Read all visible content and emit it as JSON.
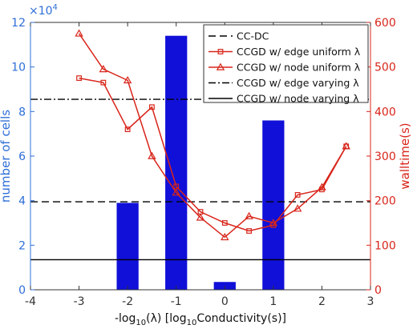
{
  "chart_data": {
    "type": "bar",
    "x_axis": {
      "label_parts": [
        "-log",
        "10",
        "(λ) [log",
        "10",
        "Conductivity(s)]"
      ],
      "range": [
        -4,
        3
      ],
      "ticks": [
        -4,
        -3,
        -2,
        -1,
        0,
        1,
        2,
        3
      ],
      "tick_labels": [
        "-4",
        "-3",
        "-2",
        "-1",
        "0",
        "1",
        "2",
        "3"
      ]
    },
    "y_left": {
      "label": "number of cells",
      "exponent_label": "×10",
      "exponent_power": "4",
      "range": [
        0,
        12
      ],
      "ticks": [
        0,
        2,
        4,
        6,
        8,
        10,
        12
      ],
      "tick_labels": [
        "0",
        "2",
        "4",
        "6",
        "8",
        "10",
        "12"
      ],
      "color": "#2e6fd8"
    },
    "y_right": {
      "label": "walltime(s)",
      "range": [
        0,
        600
      ],
      "ticks": [
        0,
        100,
        200,
        300,
        400,
        500,
        600
      ],
      "tick_labels": [
        "0",
        "100",
        "200",
        "300",
        "400",
        "500",
        "600"
      ],
      "color": "#d8251a"
    },
    "bars": {
      "color": "#1010d8",
      "x": [
        -2,
        -1,
        0,
        1
      ],
      "values": [
        3.9,
        11.4,
        0.35,
        7.6
      ]
    },
    "hlines": [
      {
        "name": "CC-DC",
        "value": 3.95,
        "style": "dashed"
      },
      {
        "name": "CCGD w/ edge varying λ",
        "value": 8.55,
        "style": "dashdot"
      },
      {
        "name": "CCGD w/ node varying λ",
        "value": 1.35,
        "style": "solid"
      }
    ],
    "series": [
      {
        "name": "CCGD w/ edge uniform λ",
        "marker": "square",
        "color": "#d8251a",
        "x": [
          -3,
          -2.5,
          -2,
          -1.5,
          -1,
          -0.5,
          0,
          0.5,
          1,
          1.5,
          2,
          2.5
        ],
        "values": [
          475,
          465,
          360,
          410,
          232,
          175,
          150,
          132,
          145,
          213,
          225,
          322
        ]
      },
      {
        "name": "CCGD w/ node uniform λ",
        "marker": "triangle",
        "color": "#d8251a",
        "x": [
          -3,
          -2.5,
          -2,
          -1.5,
          -1,
          -0.5,
          0,
          0.5,
          1,
          1.5,
          2,
          2.5
        ],
        "values": [
          575,
          495,
          470,
          300,
          218,
          162,
          118,
          165,
          150,
          182,
          230,
          322
        ]
      }
    ],
    "legend": {
      "placement": "top-right",
      "entries": [
        {
          "label": "CC-DC",
          "style": "dashed"
        },
        {
          "label": "CCGD w/ edge uniform λ",
          "style": "square"
        },
        {
          "label": "CCGD w/ node uniform λ",
          "style": "triangle"
        },
        {
          "label": "CCGD w/ edge varying λ",
          "style": "dashdot"
        },
        {
          "label": "CCGD w/ node varying λ",
          "style": "solid"
        }
      ]
    }
  }
}
